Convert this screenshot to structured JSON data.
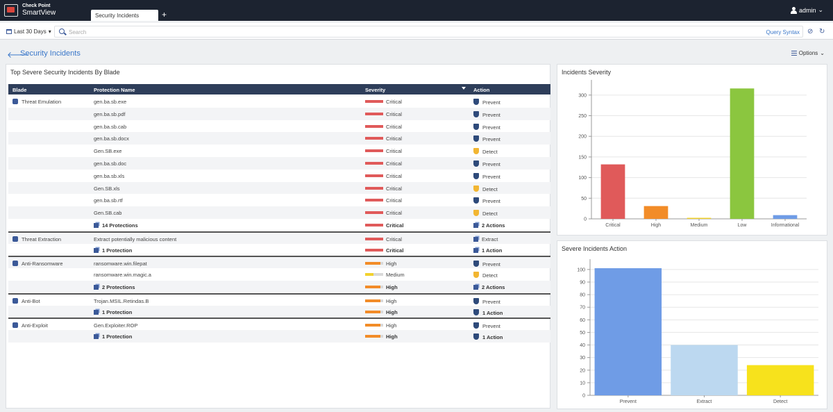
{
  "app": {
    "brand_top": "Check Point",
    "brand_bottom": "SmartView",
    "tab_label": "Security Incidents",
    "tab_add": "+",
    "user": "admin"
  },
  "searchbar": {
    "time_filter": "Last 30 Days",
    "placeholder": "Search",
    "query_syntax": "Query Syntax"
  },
  "page": {
    "title": "Security Incidents",
    "options_label": "Options"
  },
  "table_panel": {
    "title": "Top Severe Security Incidents By Blade",
    "columns": [
      "Blade",
      "Protection Name",
      "Severity",
      "Action"
    ],
    "rows": [
      {
        "blade": "Threat Emulation",
        "name": "gen.ba.sb.exe",
        "severity": "Critical",
        "action": "Prevent"
      },
      {
        "blade": "",
        "name": "gen.ba.sb.pdf",
        "severity": "Critical",
        "action": "Prevent"
      },
      {
        "blade": "",
        "name": "gen.ba.sb.cab",
        "severity": "Critical",
        "action": "Prevent"
      },
      {
        "blade": "",
        "name": "gen.ba.sb.docx",
        "severity": "Critical",
        "action": "Prevent"
      },
      {
        "blade": "",
        "name": "Gen.SB.exe",
        "severity": "Critical",
        "action": "Detect"
      },
      {
        "blade": "",
        "name": "gen.ba.sb.doc",
        "severity": "Critical",
        "action": "Prevent"
      },
      {
        "blade": "",
        "name": "gen.ba.sb.xls",
        "severity": "Critical",
        "action": "Prevent"
      },
      {
        "blade": "",
        "name": "Gen.SB.xls",
        "severity": "Critical",
        "action": "Detect"
      },
      {
        "blade": "",
        "name": "gen.ba.sb.rtf",
        "severity": "Critical",
        "action": "Prevent"
      },
      {
        "blade": "",
        "name": "Gen.SB.cab",
        "severity": "Critical",
        "action": "Detect"
      },
      {
        "blade": "",
        "name": "14 Protections",
        "severity": "Critical",
        "action": "2 Actions",
        "summary": true
      },
      {
        "blade": "Threat Extraction",
        "name": "Extract potentially malicious content",
        "severity": "Critical",
        "action": "Extract",
        "sep": true
      },
      {
        "blade": "",
        "name": "1 Protection",
        "severity": "Critical",
        "action": "1 Action",
        "summary": true
      },
      {
        "blade": "Anti-Ransomware",
        "name": "ransomware.win.filepat",
        "severity": "High",
        "action": "Prevent",
        "sep": true
      },
      {
        "blade": "",
        "name": "ransomware.win.magic.a",
        "severity": "Medium",
        "action": "Detect"
      },
      {
        "blade": "",
        "name": "2 Protections",
        "severity": "High",
        "action": "2 Actions",
        "summary": true
      },
      {
        "blade": "Anti-Bot",
        "name": "Trojan.MSIL.Retindas.B",
        "severity": "High",
        "action": "Prevent",
        "sep": true
      },
      {
        "blade": "",
        "name": "1 Protection",
        "severity": "High",
        "action": "1 Action",
        "summary": true
      },
      {
        "blade": "Anti-Exploit",
        "name": "Gen.Exploiter.ROP",
        "severity": "High",
        "action": "Prevent",
        "sep": true
      },
      {
        "blade": "",
        "name": "1 Protection",
        "severity": "High",
        "action": "1 Action",
        "summary": true
      }
    ]
  },
  "severity_panel": {
    "title": "Incidents Severity"
  },
  "action_panel": {
    "title": "Severe Incidents Action"
  },
  "colors": {
    "critical": "#e05a5a",
    "high": "#f28c28",
    "medium": "#f2d22e",
    "low": "#8bc63f",
    "informational": "#6f9ce6",
    "prevent_shield": "#2e4a7a",
    "detect_shield": "#f2b632"
  },
  "chart_data": [
    {
      "type": "bar",
      "categories": [
        "Critical",
        "High",
        "Medium",
        "Low",
        "Informational"
      ],
      "values": [
        132,
        31,
        2,
        316,
        9
      ],
      "colors": [
        "#e05a5a",
        "#f28c28",
        "#f2d22e",
        "#8bc63f",
        "#6f9ce6"
      ],
      "yticks": [
        0,
        50,
        100,
        150,
        200,
        250,
        300
      ],
      "ylim": [
        0,
        330
      ],
      "grid": true
    },
    {
      "type": "bar",
      "categories": [
        "Prevent",
        "Extract",
        "Detect"
      ],
      "values": [
        101,
        40,
        24
      ],
      "colors": [
        "#6f9ce6",
        "#bcd8f0",
        "#f7e21c"
      ],
      "yticks": [
        0,
        10,
        20,
        30,
        40,
        50,
        60,
        70,
        80,
        90,
        100
      ],
      "ylim": [
        0,
        106
      ],
      "grid": true
    }
  ]
}
